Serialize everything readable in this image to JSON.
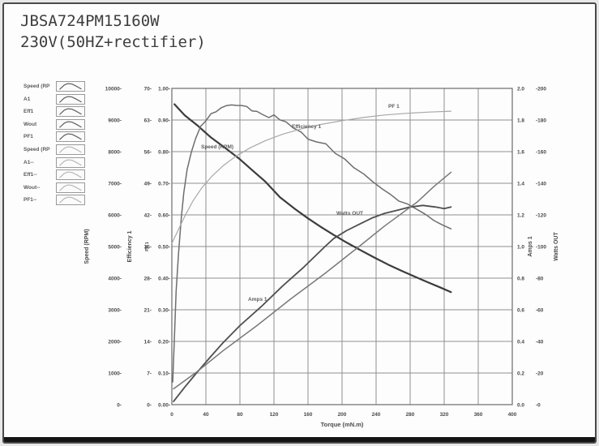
{
  "title": {
    "line1": "JBSA724PM15160W",
    "line2": "230V(50HZ+rectifier)"
  },
  "colors": {
    "frame_border": "#4a4a4a",
    "grid": "#8f8f8f",
    "plot_border": "#6b6b6b",
    "tick_text": "#4a4a4a",
    "annotation_text": "#5c5c5c",
    "bottom_bar": "#141414"
  },
  "legend": {
    "items": [
      {
        "label": "Speed (RP",
        "shade": "dark"
      },
      {
        "label": "A1",
        "shade": "dark"
      },
      {
        "label": "Eff1",
        "shade": "dark"
      },
      {
        "label": "Wout",
        "shade": "dark"
      },
      {
        "label": "PF1",
        "shade": "dark"
      },
      {
        "label": "Speed (RP",
        "shade": "light"
      },
      {
        "label": "A1--",
        "shade": "light"
      },
      {
        "label": "Eff1--",
        "shade": "light"
      },
      {
        "label": "Wout--",
        "shade": "light"
      },
      {
        "label": "PF1--",
        "shade": "light"
      }
    ]
  },
  "chart_data": {
    "type": "line",
    "title": "",
    "xlabel": "Torque (mN.m)",
    "grid": true,
    "x_axis": {
      "min": 0,
      "max": 400,
      "step": 40
    },
    "y_axes": [
      {
        "id": "speed",
        "title": "Speed (RPM)",
        "side": "left",
        "min": 0,
        "max": 10000,
        "step": 1000,
        "decimals": 0,
        "tick_prefix": "",
        "tick_suffix": "-"
      },
      {
        "id": "eff",
        "title": "Efficiency 1",
        "side": "left",
        "min": 0,
        "max": 70,
        "step": 7,
        "decimals": 0,
        "tick_prefix": "",
        "tick_suffix": "-"
      },
      {
        "id": "pf",
        "title": "PF 1",
        "side": "left",
        "min": 0,
        "max": 1.0,
        "step": 0.1,
        "decimals": 2,
        "tick_prefix": "",
        "tick_suffix": "-"
      },
      {
        "id": "amps",
        "title": "Amps 1",
        "side": "right",
        "min": 0,
        "max": 2.0,
        "step": 0.2,
        "decimals": 1,
        "tick_prefix": "",
        "tick_suffix": ""
      },
      {
        "id": "watts",
        "title": "Watts OUT",
        "side": "right",
        "min": 0,
        "max": 200,
        "step": 20,
        "decimals": 0,
        "tick_prefix": "-",
        "tick_suffix": ""
      }
    ],
    "series": [
      {
        "name": "Speed (RPM)",
        "axis": "speed",
        "color": "#3c3c3c",
        "width": 2.2,
        "noisy": false,
        "points": [
          [
            3,
            9500
          ],
          [
            15,
            9150
          ],
          [
            30,
            8830
          ],
          [
            45,
            8470
          ],
          [
            64,
            8090
          ],
          [
            80,
            7760
          ],
          [
            95,
            7400
          ],
          [
            110,
            7050
          ],
          [
            127,
            6560
          ],
          [
            145,
            6180
          ],
          [
            160,
            5890
          ],
          [
            175,
            5620
          ],
          [
            190,
            5370
          ],
          [
            205,
            5130
          ],
          [
            222,
            4880
          ],
          [
            238,
            4650
          ],
          [
            254,
            4430
          ],
          [
            270,
            4230
          ],
          [
            286,
            4040
          ],
          [
            300,
            3880
          ],
          [
            315,
            3710
          ],
          [
            328,
            3560
          ]
        ]
      },
      {
        "name": "Efficiency 1",
        "axis": "eff",
        "color": "#6e6e6e",
        "width": 1.5,
        "noisy": true,
        "points": [
          [
            1,
            5
          ],
          [
            3,
            15
          ],
          [
            5,
            25
          ],
          [
            8,
            34
          ],
          [
            11,
            41
          ],
          [
            14,
            47
          ],
          [
            18,
            52
          ],
          [
            23,
            56
          ],
          [
            28,
            59
          ],
          [
            34,
            61.5
          ],
          [
            40,
            63
          ],
          [
            46,
            64.2
          ],
          [
            52,
            65
          ],
          [
            58,
            65.6
          ],
          [
            64,
            66.2
          ],
          [
            70,
            66.4
          ],
          [
            76,
            66.1
          ],
          [
            82,
            66.4
          ],
          [
            88,
            65.8
          ],
          [
            94,
            65.2
          ],
          [
            100,
            64.8
          ],
          [
            107,
            64.2
          ],
          [
            114,
            63.6
          ],
          [
            120,
            64
          ],
          [
            127,
            63.2
          ],
          [
            134,
            62.4
          ],
          [
            143,
            61.4
          ],
          [
            152,
            60.2
          ],
          [
            160,
            58.8
          ],
          [
            170,
            58.2
          ],
          [
            181,
            57.6
          ],
          [
            192,
            55.8
          ],
          [
            203,
            54.2
          ],
          [
            214,
            52.6
          ],
          [
            225,
            51
          ],
          [
            236,
            49.4
          ],
          [
            247,
            47.8
          ],
          [
            257,
            46.4
          ],
          [
            267,
            45.2
          ],
          [
            277,
            44.2
          ],
          [
            288,
            43.4
          ],
          [
            298,
            42
          ],
          [
            308,
            40.8
          ],
          [
            318,
            39.8
          ],
          [
            328,
            38.8
          ]
        ]
      },
      {
        "name": "Watts OUT",
        "axis": "watts",
        "color": "#4f4f4f",
        "width": 1.8,
        "noisy": false,
        "points": [
          [
            2,
            2
          ],
          [
            15,
            11
          ],
          [
            29,
            20
          ],
          [
            45,
            30
          ],
          [
            60,
            39
          ],
          [
            80,
            50
          ],
          [
            105,
            62
          ],
          [
            130,
            75
          ],
          [
            155,
            87
          ],
          [
            180,
            100
          ],
          [
            190,
            105
          ],
          [
            205,
            110
          ],
          [
            220,
            114
          ],
          [
            235,
            118
          ],
          [
            250,
            121
          ],
          [
            265,
            123
          ],
          [
            280,
            125
          ],
          [
            295,
            126
          ],
          [
            310,
            125
          ],
          [
            320,
            124
          ],
          [
            328,
            125
          ]
        ]
      },
      {
        "name": "Amps 1",
        "axis": "amps",
        "color": "#787878",
        "width": 1.5,
        "noisy": false,
        "points": [
          [
            2,
            0.1
          ],
          [
            30,
            0.21
          ],
          [
            60,
            0.34
          ],
          [
            100,
            0.5
          ],
          [
            140,
            0.67
          ],
          [
            180,
            0.83
          ],
          [
            220,
            1.0
          ],
          [
            250,
            1.13
          ],
          [
            288,
            1.28
          ],
          [
            308,
            1.38
          ],
          [
            328,
            1.47
          ]
        ]
      },
      {
        "name": "PF 1",
        "axis": "pf",
        "color": "#a8a8a8",
        "width": 1.2,
        "noisy": false,
        "points": [
          [
            0,
            0.51
          ],
          [
            8,
            0.555
          ],
          [
            16,
            0.6
          ],
          [
            25,
            0.645
          ],
          [
            35,
            0.685
          ],
          [
            47,
            0.722
          ],
          [
            60,
            0.755
          ],
          [
            75,
            0.785
          ],
          [
            92,
            0.812
          ],
          [
            110,
            0.835
          ],
          [
            130,
            0.855
          ],
          [
            152,
            0.872
          ],
          [
            175,
            0.886
          ],
          [
            200,
            0.898
          ],
          [
            225,
            0.908
          ],
          [
            250,
            0.916
          ],
          [
            275,
            0.921
          ],
          [
            300,
            0.925
          ],
          [
            328,
            0.928
          ]
        ]
      }
    ],
    "annotations": [
      {
        "text": "Speed (RPM)",
        "x": 246,
        "y": 181
      },
      {
        "text": "Efficiency 1",
        "x": 358,
        "y": 156
      },
      {
        "text": "PF 1",
        "x": 477,
        "y": 131
      },
      {
        "text": "Watts OUT",
        "x": 413,
        "y": 263
      },
      {
        "text": "Amps 1",
        "x": 304,
        "y": 369
      }
    ]
  }
}
